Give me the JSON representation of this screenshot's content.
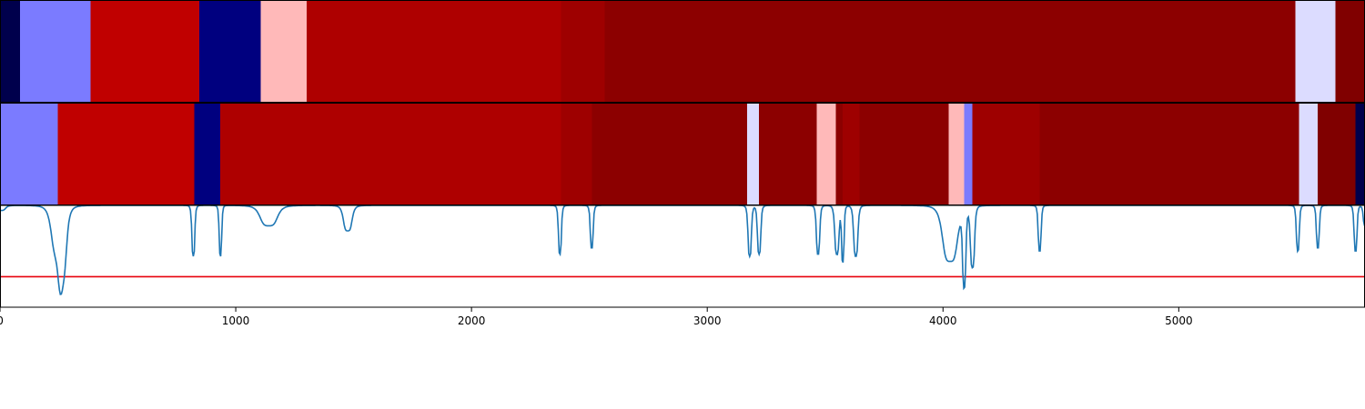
{
  "chart_data": {
    "type": "heatmap",
    "xlim": [
      0,
      5790
    ],
    "x_ticks": [
      "0",
      "1000",
      "2000",
      "3000",
      "4000",
      "5000"
    ],
    "x_tick_values": [
      0,
      1000,
      2000,
      3000,
      4000,
      5000
    ],
    "colormap": "seismic",
    "grid": false,
    "legend": "none",
    "bands": [
      {
        "name": "",
        "segments": [
          {
            "start": 0,
            "end": 85,
            "color": "#00004c"
          },
          {
            "start": 85,
            "end": 385,
            "color": "#7b7bff"
          },
          {
            "start": 385,
            "end": 845,
            "color": "#c00000"
          },
          {
            "start": 845,
            "end": 1105,
            "color": "#00007f"
          },
          {
            "start": 1105,
            "end": 1300,
            "color": "#ffb9b9"
          },
          {
            "start": 1300,
            "end": 2380,
            "color": "#ae0000"
          },
          {
            "start": 2380,
            "end": 2565,
            "color": "#9e0000"
          },
          {
            "start": 2565,
            "end": 5495,
            "color": "#8c0000"
          },
          {
            "start": 5495,
            "end": 5665,
            "color": "#dcdcff"
          },
          {
            "start": 5665,
            "end": 5790,
            "color": "#800000"
          }
        ]
      },
      {
        "name": "",
        "segments": [
          {
            "start": 0,
            "end": 245,
            "color": "#7b7bff"
          },
          {
            "start": 245,
            "end": 825,
            "color": "#c00000"
          },
          {
            "start": 825,
            "end": 935,
            "color": "#00007f"
          },
          {
            "start": 935,
            "end": 2380,
            "color": "#ae0000"
          },
          {
            "start": 2380,
            "end": 2510,
            "color": "#9e0000"
          },
          {
            "start": 2510,
            "end": 3170,
            "color": "#8c0000"
          },
          {
            "start": 3170,
            "end": 3220,
            "color": "#dcdcff"
          },
          {
            "start": 3220,
            "end": 3465,
            "color": "#8c0000"
          },
          {
            "start": 3465,
            "end": 3545,
            "color": "#ffb9b9"
          },
          {
            "start": 3545,
            "end": 3575,
            "color": "#8c0000"
          },
          {
            "start": 3575,
            "end": 3645,
            "color": "#9e0000"
          },
          {
            "start": 3645,
            "end": 4025,
            "color": "#8c0000"
          },
          {
            "start": 4025,
            "end": 4090,
            "color": "#ffb9b9"
          },
          {
            "start": 4090,
            "end": 4125,
            "color": "#7b7bff"
          },
          {
            "start": 4125,
            "end": 4410,
            "color": "#9e0000"
          },
          {
            "start": 4410,
            "end": 5510,
            "color": "#8c0000"
          },
          {
            "start": 5510,
            "end": 5590,
            "color": "#dcdcff"
          },
          {
            "start": 5590,
            "end": 5750,
            "color": "#800000"
          },
          {
            "start": 5750,
            "end": 5790,
            "color": "#00004c"
          }
        ]
      }
    ],
    "line": {
      "color": "#1f77b4",
      "ylim": [
        0,
        1
      ],
      "baseline": 1.0,
      "dips": [
        {
          "center": 5,
          "depth": 0.05,
          "width": 20
        },
        {
          "center": 245,
          "depth": 0.45,
          "width": 30
        },
        {
          "center": 265,
          "depth": 0.45,
          "width": 20
        },
        {
          "center": 820,
          "depth": 0.5,
          "width": 7
        },
        {
          "center": 935,
          "depth": 0.5,
          "width": 6
        },
        {
          "center": 1140,
          "depth": 0.2,
          "width": 40
        },
        {
          "center": 1475,
          "depth": 0.25,
          "width": 20
        },
        {
          "center": 2375,
          "depth": 0.48,
          "width": 7
        },
        {
          "center": 2510,
          "depth": 0.42,
          "width": 7
        },
        {
          "center": 3180,
          "depth": 0.5,
          "width": 8
        },
        {
          "center": 3220,
          "depth": 0.48,
          "width": 8
        },
        {
          "center": 3470,
          "depth": 0.48,
          "width": 8
        },
        {
          "center": 3550,
          "depth": 0.48,
          "width": 10
        },
        {
          "center": 3575,
          "depth": 0.55,
          "width": 6
        },
        {
          "center": 3630,
          "depth": 0.5,
          "width": 10
        },
        {
          "center": 4030,
          "depth": 0.55,
          "width": 35
        },
        {
          "center": 4090,
          "depth": 0.75,
          "width": 8
        },
        {
          "center": 4125,
          "depth": 0.6,
          "width": 10
        },
        {
          "center": 4410,
          "depth": 0.45,
          "width": 7
        },
        {
          "center": 5505,
          "depth": 0.45,
          "width": 7
        },
        {
          "center": 5590,
          "depth": 0.42,
          "width": 7
        },
        {
          "center": 5750,
          "depth": 0.45,
          "width": 7
        },
        {
          "center": 5790,
          "depth": 0.2,
          "width": 8
        }
      ]
    },
    "threshold": {
      "value": 0.3,
      "color": "#e8000b"
    }
  }
}
